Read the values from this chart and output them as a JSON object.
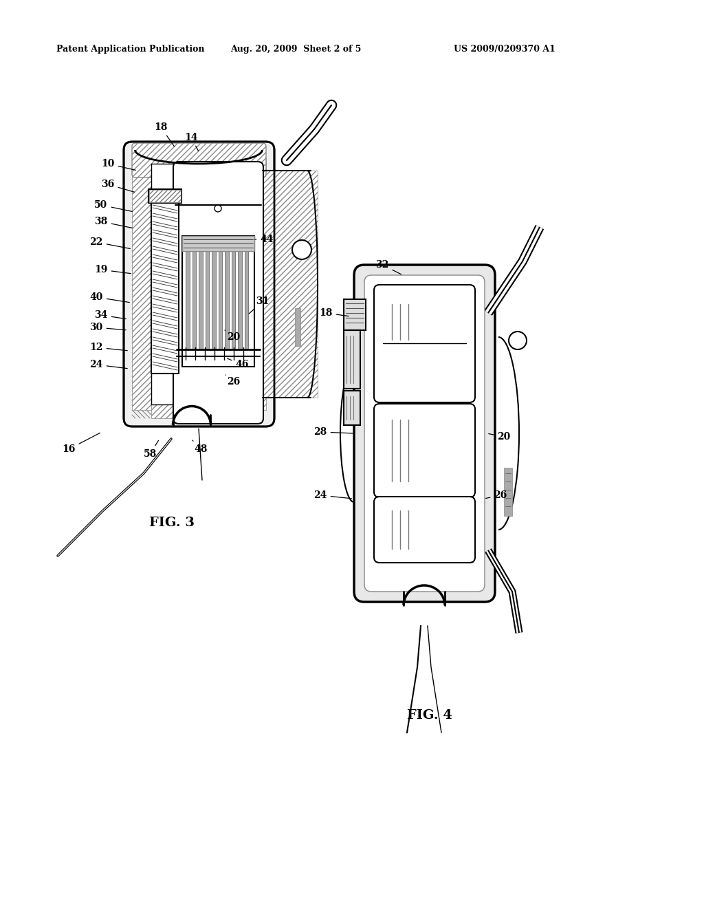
{
  "bg_color": "#ffffff",
  "header_left": "Patent Application Publication",
  "header_mid": "Aug. 20, 2009  Sheet 2 of 5",
  "header_right": "US 2009/0209370 A1",
  "fig3_label": "FIG. 3",
  "fig4_label": "FIG. 4",
  "lc": "#000000",
  "gray": "#999999",
  "lightgray": "#cccccc",
  "darkgray": "#555555"
}
